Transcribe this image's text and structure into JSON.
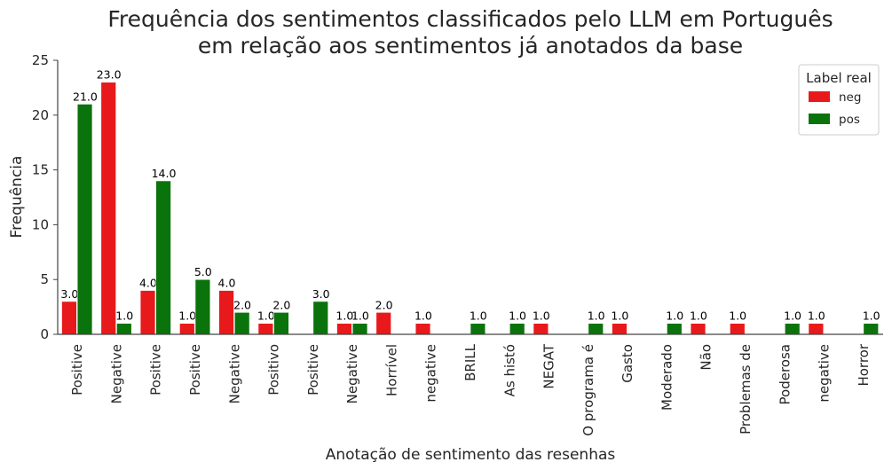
{
  "chart_data": {
    "type": "bar",
    "title_lines": [
      "Frequência dos sentimentos classificados pelo LLM em Português",
      "em relação aos sentimentos já anotados da base"
    ],
    "xlabel": "Anotação de sentimento das resenhas",
    "ylabel": "Frequência",
    "ylim": [
      0,
      25
    ],
    "yticks": [
      "0",
      "5",
      "10",
      "15",
      "20",
      "25"
    ],
    "grid": false,
    "legend": {
      "title": "Label real",
      "position": "top-right"
    },
    "categories": [
      "Positive",
      "Negative",
      "Positive",
      "Positive",
      "Negative",
      "Positivo",
      "Positive",
      "Negative",
      "Horrível",
      "negative",
      "BRILL",
      "As histó",
      "NEGAT",
      "O programa é",
      "Gasto",
      "Moderado",
      "Não",
      "Problemas de",
      "Poderosa",
      "negative",
      "Horror"
    ],
    "series": [
      {
        "name": "neg",
        "color": "#e8191b",
        "values": [
          3,
          23,
          4,
          1,
          4,
          1,
          null,
          1,
          2,
          1,
          null,
          null,
          1,
          null,
          1,
          null,
          1,
          1,
          null,
          1,
          null
        ]
      },
      {
        "name": "pos",
        "color": "#0b730b",
        "values": [
          21,
          1,
          14,
          5,
          2,
          2,
          3,
          1,
          null,
          null,
          1,
          1,
          null,
          1,
          null,
          1,
          null,
          null,
          1,
          null,
          1
        ]
      }
    ]
  }
}
